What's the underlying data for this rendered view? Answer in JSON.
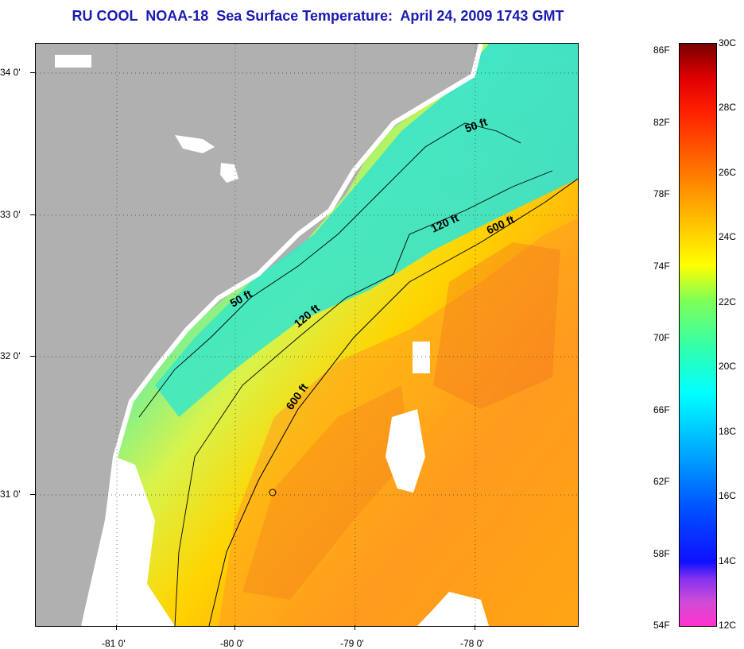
{
  "title": "RU COOL  NOAA-18  Sea Surface Temperature:  April 24, 2009 1743 GMT",
  "lat_labels": [
    "34 0'",
    "33 0'",
    "32 0'",
    "31 0'"
  ],
  "lon_labels": [
    "-81 0'",
    "-80 0'",
    "-79 0'",
    "-78 0'"
  ],
  "contour_labels": [
    "50 ft",
    "50 ft",
    "120 ft",
    "120 ft",
    "600 ft",
    "600 ft"
  ],
  "colorbar": {
    "fahrenheit": [
      "86F",
      "82F",
      "78F",
      "74F",
      "70F",
      "66F",
      "62F",
      "58F",
      "54F"
    ],
    "celsius": [
      "30C",
      "28C",
      "26C",
      "24C",
      "22C",
      "20C",
      "18C",
      "16C",
      "14C",
      "12C"
    ]
  },
  "colors": {
    "land": "#b0b0b0",
    "title": "#1b1bb0",
    "warm": "#ff8c1a",
    "cool": "#2ee8c8"
  }
}
